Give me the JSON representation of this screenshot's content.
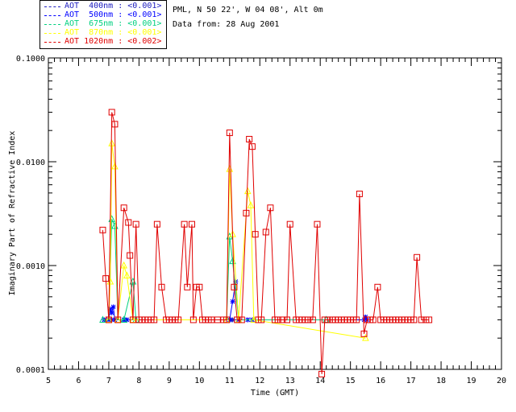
{
  "header": {
    "site": "PML, N 50 22', W 04 08', Alt 0m",
    "data_from": "Data from: 28 Aug 2001"
  },
  "legend": [
    {
      "label": "AOT  400nm : <0.001>",
      "color": "#2020c0"
    },
    {
      "label": "AOT  500nm : <0.001>",
      "color": "#0000ff"
    },
    {
      "label": "AOT  675nm : <0.001>",
      "color": "#00d080"
    },
    {
      "label": "AOT  870nm : <0.001>",
      "color": "#ffff00"
    },
    {
      "label": "AOT 1020nm : <0.002>",
      "color": "#e00000"
    }
  ],
  "chart_data": {
    "type": "line",
    "title": "",
    "xlabel": "Time (GMT)",
    "ylabel": "Imaginary Part of Refractive Index",
    "xlim": [
      5,
      20
    ],
    "ylim": [
      0.0001,
      0.1
    ],
    "yscale": "log",
    "x_ticks": [
      "5",
      "6",
      "7",
      "8",
      "9",
      "10",
      "11",
      "12",
      "13",
      "14",
      "15",
      "16",
      "17",
      "18",
      "19",
      "20"
    ],
    "y_ticks": [
      "0.0001",
      "0.0010",
      "0.0100",
      "0.1000"
    ],
    "series": [
      {
        "name": "AOT 400nm",
        "color": "#2020c0",
        "marker": "star",
        "x": [
          6.85,
          7.0,
          7.1,
          7.2,
          7.5,
          7.6,
          11.0,
          11.05,
          11.1,
          11.6,
          11.75
        ],
        "y": [
          0.0003,
          0.0003,
          0.0003,
          0.0003,
          0.0003,
          0.0003,
          0.0003,
          0.0003,
          0.0003,
          0.0003,
          0.0003
        ]
      },
      {
        "name": "AOT 500nm",
        "color": "#0000ff",
        "marker": "star",
        "x": [
          6.85,
          7.0,
          7.05,
          7.1,
          7.15,
          7.2,
          7.5,
          7.55,
          7.6,
          11.0,
          11.1,
          11.2,
          11.3,
          11.6,
          11.75,
          15.45,
          15.5,
          15.55
        ],
        "y": [
          0.0003,
          0.0003,
          0.00038,
          0.00035,
          0.0004,
          0.0003,
          0.0003,
          0.0003,
          0.0003,
          0.0003,
          0.00045,
          0.0007,
          0.0003,
          0.0003,
          0.0003,
          0.0003,
          0.00032,
          0.0003
        ]
      },
      {
        "name": "AOT 675nm",
        "color": "#00d080",
        "marker": "triangle",
        "x": [
          6.8,
          7.0,
          7.1,
          7.2,
          7.3,
          7.5,
          7.8,
          7.9,
          10.9,
          11.0,
          11.1,
          11.3,
          11.8,
          14.2
        ],
        "y": [
          0.0003,
          0.0003,
          0.0028,
          0.0024,
          0.0003,
          0.0003,
          0.0007,
          0.0003,
          0.0003,
          0.0019,
          0.0011,
          0.0003,
          0.0003,
          0.0003
        ]
      },
      {
        "name": "AOT 870nm",
        "color": "#ffff00",
        "marker": "triangle",
        "x": [
          7.0,
          7.05,
          7.1,
          7.2,
          7.3,
          7.5,
          7.6,
          7.8,
          10.9,
          11.0,
          11.1,
          11.3,
          11.6,
          11.7,
          11.8,
          15.5
        ],
        "y": [
          0.0003,
          0.0007,
          0.015,
          0.009,
          0.0003,
          0.001,
          0.0008,
          0.0003,
          0.0003,
          0.0085,
          0.002,
          0.0003,
          0.0052,
          0.0038,
          0.0003,
          0.0002
        ]
      },
      {
        "name": "AOT 1020nm",
        "color": "#e00000",
        "marker": "square",
        "x": [
          6.8,
          6.9,
          7.0,
          7.1,
          7.2,
          7.3,
          7.5,
          7.65,
          7.7,
          7.8,
          7.9,
          8.0,
          8.1,
          8.2,
          8.3,
          8.4,
          8.5,
          8.6,
          8.75,
          8.9,
          9.0,
          9.1,
          9.2,
          9.3,
          9.5,
          9.6,
          9.75,
          9.8,
          9.9,
          10.0,
          10.1,
          10.2,
          10.3,
          10.4,
          10.6,
          10.8,
          10.9,
          11.0,
          11.15,
          11.25,
          11.4,
          11.55,
          11.65,
          11.75,
          11.85,
          11.95,
          12.05,
          12.2,
          12.35,
          12.5,
          12.6,
          12.75,
          12.9,
          13.0,
          13.2,
          13.3,
          13.4,
          13.5,
          13.6,
          13.75,
          13.9,
          14.05,
          14.15,
          14.25,
          14.4,
          14.5,
          14.6,
          14.7,
          14.8,
          14.9,
          15.0,
          15.1,
          15.2,
          15.3,
          15.45,
          15.55,
          15.65,
          15.75,
          15.9,
          16.0,
          16.1,
          16.2,
          16.3,
          16.4,
          16.5,
          16.6,
          16.7,
          16.8,
          16.9,
          17.0,
          17.1,
          17.2,
          17.35,
          17.5,
          17.6
        ],
        "y": [
          0.0022,
          0.00075,
          0.0003,
          0.03,
          0.023,
          0.0003,
          0.0036,
          0.0026,
          0.00125,
          0.0003,
          0.0025,
          0.0003,
          0.0003,
          0.0003,
          0.0003,
          0.0003,
          0.0003,
          0.0025,
          0.00062,
          0.0003,
          0.0003,
          0.0003,
          0.0003,
          0.0003,
          0.0025,
          0.00062,
          0.0025,
          0.0003,
          0.00062,
          0.00062,
          0.0003,
          0.0003,
          0.0003,
          0.0003,
          0.0003,
          0.0003,
          0.0003,
          0.019,
          0.00062,
          0.0003,
          0.0003,
          0.0032,
          0.0165,
          0.014,
          0.002,
          0.0003,
          0.0003,
          0.0021,
          0.0036,
          0.0003,
          0.0003,
          0.0003,
          0.0003,
          0.0025,
          0.0003,
          0.0003,
          0.0003,
          0.0003,
          0.0003,
          0.0003,
          0.0025,
          9e-05,
          0.0003,
          0.0003,
          0.0003,
          0.0003,
          0.0003,
          0.0003,
          0.0003,
          0.0003,
          0.0003,
          0.0003,
          0.0003,
          0.0049,
          0.00022,
          0.0003,
          0.0003,
          0.0003,
          0.00062,
          0.0003,
          0.0003,
          0.0003,
          0.0003,
          0.0003,
          0.0003,
          0.0003,
          0.0003,
          0.0003,
          0.0003,
          0.0003,
          0.0003,
          0.0012,
          0.0003,
          0.0003,
          0.0003
        ]
      }
    ]
  }
}
